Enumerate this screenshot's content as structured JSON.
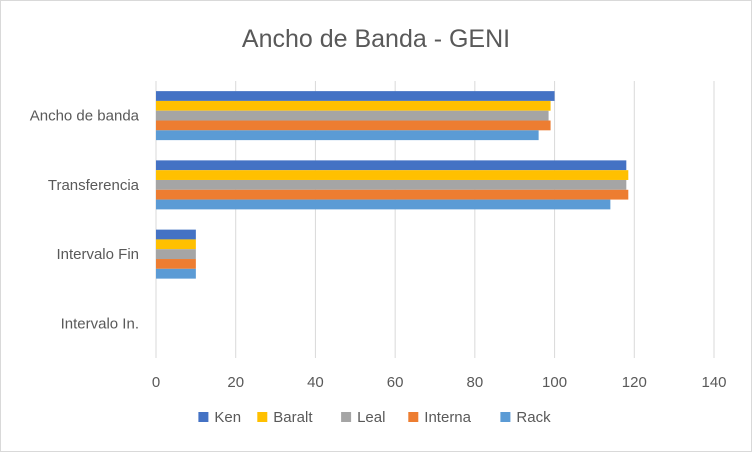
{
  "chart_data": {
    "type": "bar",
    "orientation": "horizontal",
    "title": "Ancho de Banda - GENI",
    "categories": [
      "Ancho de banda",
      "Transferencia",
      "Intervalo Fin",
      "Intervalo In."
    ],
    "series": [
      {
        "name": "Ken",
        "color": "#4472C4",
        "values": [
          100,
          118,
          10,
          0
        ]
      },
      {
        "name": "Baralt",
        "color": "#FFC000",
        "values": [
          99,
          118.5,
          10,
          0
        ]
      },
      {
        "name": "Leal",
        "color": "#A5A5A5",
        "values": [
          98.5,
          118,
          10,
          0
        ]
      },
      {
        "name": "Interna",
        "color": "#ED7D31",
        "values": [
          99,
          118.5,
          10,
          0
        ]
      },
      {
        "name": "Rack",
        "color": "#5B9BD5",
        "values": [
          96,
          114,
          10,
          0
        ]
      }
    ],
    "xlim": [
      0,
      140
    ],
    "xticks": [
      "0",
      "20",
      "40",
      "60",
      "80",
      "100",
      "120",
      "140"
    ],
    "grid": true,
    "legend_position": "bottom"
  }
}
